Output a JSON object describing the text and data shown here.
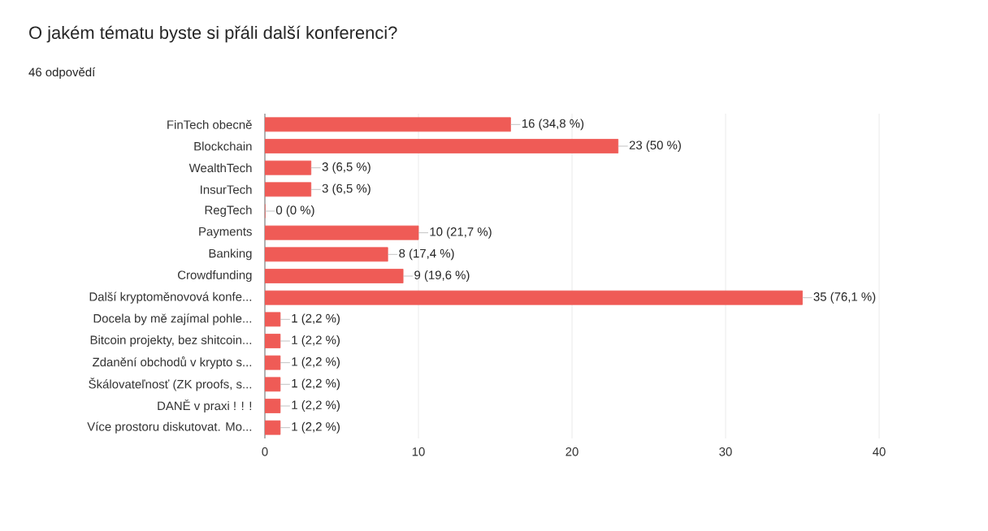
{
  "chart_data": {
    "type": "bar",
    "orientation": "horizontal",
    "title": "O jakém tématu byste si přáli další konferenci?",
    "subtitle": "46 odpovědí",
    "categories": [
      "FinTech obecně",
      "Blockchain",
      "WealthTech",
      "InsurTech",
      "RegTech",
      "Payments",
      "Banking",
      "Crowdfunding",
      "Další kryptoměnovová konfe...",
      "Docela by mě zajímal pohle...",
      "Bitcoin projekty, bez shitcoin...",
      "Zdanění obchodů v krypto s...",
      "Škálovateľnosť (ZK proofs, s...",
      "DANĚ v praxi ! ! !",
      "Více prostoru diskutovat. Mo..."
    ],
    "values": [
      16,
      23,
      3,
      3,
      0,
      10,
      8,
      9,
      35,
      1,
      1,
      1,
      1,
      1,
      1
    ],
    "value_labels": [
      "16 (34,8 %)",
      "23 (50 %)",
      "3 (6,5 %)",
      "3 (6,5 %)",
      "0 (0 %)",
      "10 (21,7 %)",
      "8 (17,4 %)",
      "9 (19,6 %)",
      "35 (76,1 %)",
      "1 (2,2 %)",
      "1 (2,2 %)",
      "1 (2,2 %)",
      "1 (2,2 %)",
      "1 (2,2 %)",
      "1 (2,2 %)"
    ],
    "color": "#ef5b56",
    "xlim": [
      0,
      40
    ],
    "xticks": [
      0,
      10,
      20,
      30,
      40
    ],
    "grid": "x"
  }
}
